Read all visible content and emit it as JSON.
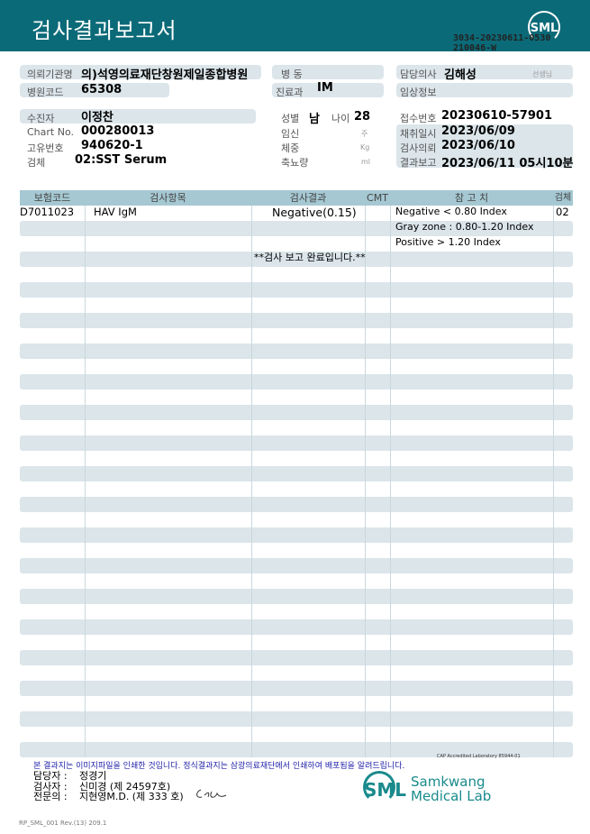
{
  "header": {
    "title": "검사결과보고서",
    "logo": "SML",
    "request_no_line1": "3034-20230611-0530",
    "request_no_line2": "210046-W"
  },
  "info": {
    "institution_label": "의뢰기관명",
    "institution": "의)석영의료재단창원제일종합병원",
    "hospital_code_label": "병원코드",
    "hospital_code": "65308",
    "ward_label": "병 동",
    "ward": "",
    "dept_label": "진료과",
    "dept": "IM",
    "doctor_label": "담당의사",
    "doctor": "김해성",
    "doctor_suffix": "선생님",
    "clinical_label": "임상정보",
    "clinical": "",
    "patient_label": "수진자",
    "patient": "이정찬",
    "chart_label": "Chart No.",
    "chart": "000280013",
    "unique_label": "고유번호",
    "unique": "940620-1",
    "specimen_label": "검체",
    "specimen": "02:SST Serum",
    "sex_label": "성별",
    "sex": "남",
    "age_label": "나이",
    "age": "28",
    "pregnancy_label": "임신",
    "pregnancy_unit": "주",
    "weight_label": "체중",
    "weight_unit": "Kg",
    "urine_label": "축뇨량",
    "urine_unit": "ml",
    "accession_label": "접수번호",
    "accession": "20230610-57901",
    "collected_label": "채취일시",
    "collected": "2023/06/09",
    "requested_label": "검사의뢰",
    "requested": "2023/06/10",
    "reported_label": "결과보고",
    "reported": "2023/06/11 05시10분"
  },
  "table": {
    "headers": [
      "보험코드",
      "검사항목",
      "검사결과",
      "CMT",
      "참 고 치",
      "검체"
    ],
    "rows": [
      {
        "code": "D7011023",
        "item": "HAV IgM",
        "result": "Negative(0.15)",
        "cmt": "",
        "reference": [
          "Negative < 0.80 Index",
          "Gray zone : 0.80-1.20 Index",
          "Positive > 1.20 Index"
        ],
        "specimen": "02"
      }
    ],
    "completion_note": "**검사  보고  완료입니다.**"
  },
  "footer": {
    "cap": "CAP Accredited Laboratory 85944-01",
    "notice": "본 결과지는 이미지파일을 인쇄한 것입니다. 정식결과지는 삼광의료재단에서 인쇄하여 배포됨을 알려드립니다.",
    "manager_label": "담당자 :",
    "manager": "정경기",
    "tester_label": "검사자 :",
    "tester": "신미경 (제 24597호)",
    "specialist_label": "전문의 :",
    "specialist": "지현영M.D. (제 333 호)",
    "lab_name1": "Samkwang",
    "lab_name2": "Medical Lab",
    "form_code": "RP_SML_001 Rev.(13) 209.1"
  },
  "colors": {
    "header": "#0b6a78",
    "band": "#dbe5ea",
    "table_header": "#a5c8d2",
    "notice": "#2222aa"
  }
}
